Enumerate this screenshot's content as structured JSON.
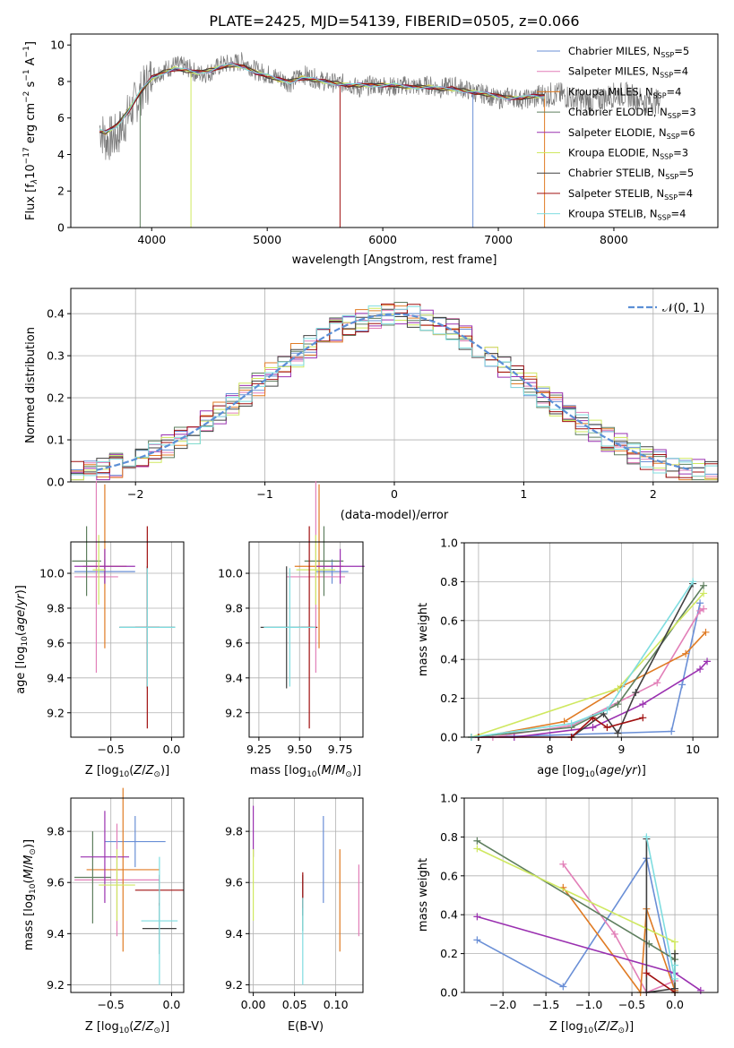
{
  "figure": {
    "title": "PLATE=2425, MJD=54139, FIBERID=0505, z=0.066"
  },
  "series": [
    {
      "name": "Chabrier MILES, N",
      "nssp": "=5",
      "color": "#6a8fd6"
    },
    {
      "name": "Salpeter MILES, N",
      "nssp": "=4",
      "color": "#e27fb8"
    },
    {
      "name": "Kroupa MILES, N",
      "nssp": "=4",
      "color": "#e07b24"
    },
    {
      "name": "Chabrier ELODIE, N",
      "nssp": "=3",
      "color": "#5f7f5f"
    },
    {
      "name": "Salpeter ELODIE, N",
      "nssp": "=6",
      "color": "#9a30b0"
    },
    {
      "name": "Kroupa ELODIE, N",
      "nssp": "=3",
      "color": "#cfe860"
    },
    {
      "name": "Chabrier STELIB, N",
      "nssp": "=5",
      "color": "#404040"
    },
    {
      "name": "Salpeter STELIB, N",
      "nssp": "=4",
      "color": "#a01010"
    },
    {
      "name": "Kroupa STELIB, N",
      "nssp": "=4",
      "color": "#7fdde0"
    }
  ],
  "legend_sub": "SSP",
  "chart_data": [
    {
      "id": "spectrum",
      "type": "line",
      "xlabel": "wavelength [Angstrom, rest frame]",
      "ylabel": "Flux [f",
      "xlim": [
        3300,
        8900
      ],
      "ylim": [
        0,
        10.6
      ],
      "xticks": [
        4000,
        5000,
        6000,
        7000,
        8000
      ],
      "yticks": [
        0,
        2,
        4,
        6,
        8,
        10
      ],
      "x": [
        3550,
        3600,
        3700,
        3800,
        3900,
        4000,
        4100,
        4200,
        4300,
        4400,
        4500,
        4600,
        4700,
        4800,
        4900,
        5000,
        5100,
        5200,
        5300,
        5400,
        5500,
        5600,
        5700,
        5800,
        5900,
        6000,
        6100,
        6200,
        6300,
        6400,
        6500,
        6600,
        6700,
        6800,
        6900,
        7000,
        7100,
        7200,
        7300,
        7400
      ],
      "data_flux": [
        5.5,
        4.8,
        5.0,
        6.2,
        7.3,
        8.3,
        8.6,
        8.9,
        8.8,
        8.4,
        8.5,
        8.9,
        9.0,
        9.1,
        8.6,
        8.4,
        8.2,
        7.9,
        8.4,
        8.2,
        8.0,
        7.9,
        7.9,
        7.6,
        7.8,
        7.8,
        7.7,
        7.8,
        7.7,
        7.8,
        7.6,
        7.8,
        7.6,
        7.4,
        7.3,
        7.0,
        7.2,
        7.0,
        7.1,
        7.3
      ],
      "model_flux": [
        5.3,
        5.2,
        5.6,
        6.4,
        7.4,
        8.2,
        8.5,
        8.7,
        8.6,
        8.5,
        8.6,
        8.8,
        8.9,
        8.8,
        8.5,
        8.3,
        8.1,
        8.0,
        8.2,
        8.1,
        8.0,
        7.9,
        7.8,
        7.8,
        7.8,
        7.8,
        7.8,
        7.7,
        7.7,
        7.7,
        7.6,
        7.6,
        7.5,
        7.4,
        7.3,
        7.2,
        7.1,
        7.1,
        7.2,
        7.2
      ]
    },
    {
      "id": "residuals",
      "type": "line",
      "xlabel": "(data-model)/error",
      "ylabel": "Normed distribution",
      "xlim": [
        -2.5,
        2.5
      ],
      "ylim": [
        0,
        0.46
      ],
      "xticks": [
        -2,
        -1,
        0,
        1,
        2
      ],
      "yticks": [
        0.0,
        0.1,
        0.2,
        0.3,
        0.4
      ],
      "legend": "𝒩(0, 1)"
    },
    {
      "id": "age_vs_Z",
      "type": "scatter",
      "xlabel": "Z [log",
      "ylabel": "age  [log",
      "xlim": [
        -0.83,
        0.1
      ],
      "ylim": [
        9.06,
        10.18
      ],
      "xticks": [
        -0.5,
        0.0
      ],
      "yticks": [
        9.2,
        9.4,
        9.6,
        9.8,
        10.0
      ],
      "points": [
        {
          "series": 0,
          "x": -0.55,
          "y": 10.01,
          "xerr": 0.25,
          "yerr": 0.07
        },
        {
          "series": 1,
          "x": -0.62,
          "y": 9.98,
          "xerr": 0.18,
          "yerr": 0.55
        },
        {
          "series": 2,
          "x": -0.55,
          "y": 10.04,
          "xerr": 0.18,
          "yerr": 0.47
        },
        {
          "series": 3,
          "x": -0.7,
          "y": 10.07,
          "xerr": 0.12,
          "yerr": 0.2
        },
        {
          "series": 4,
          "x": -0.55,
          "y": 10.04,
          "xerr": 0.25,
          "yerr": 0.1
        },
        {
          "series": 5,
          "x": -0.6,
          "y": 10.02,
          "xerr": 0.05,
          "yerr": 0.2
        },
        {
          "series": 6,
          "x": -0.2,
          "y": 9.69,
          "xerr": 0.23,
          "yerr": 0.35
        },
        {
          "series": 7,
          "x": -0.2,
          "y": 9.69,
          "xerr": 0.1,
          "yerr": 0.58
        },
        {
          "series": 8,
          "x": -0.2,
          "y": 9.69,
          "xerr": 0.23,
          "yerr": 0.34
        }
      ]
    },
    {
      "id": "age_vs_mass",
      "type": "scatter",
      "xlabel": "mass [log",
      "ylabel": "",
      "xlim": [
        9.19,
        9.89
      ],
      "ylim": [
        9.06,
        10.18
      ],
      "xticks": [
        9.25,
        9.5,
        9.75
      ],
      "yticks": [
        9.2,
        9.4,
        9.6,
        9.8,
        10.0
      ],
      "points": [
        {
          "series": 0,
          "x": 9.7,
          "y": 10.01,
          "xerr": 0.1,
          "yerr": 0.07
        },
        {
          "series": 1,
          "x": 9.6,
          "y": 9.98,
          "xerr": 0.18,
          "yerr": 0.55
        },
        {
          "series": 2,
          "x": 9.62,
          "y": 10.04,
          "xerr": 0.15,
          "yerr": 0.47
        },
        {
          "series": 3,
          "x": 9.65,
          "y": 10.07,
          "xerr": 0.12,
          "yerr": 0.2
        },
        {
          "series": 4,
          "x": 9.75,
          "y": 10.04,
          "xerr": 0.15,
          "yerr": 0.1
        },
        {
          "series": 5,
          "x": 9.6,
          "y": 10.02,
          "xerr": 0.12,
          "yerr": 0.2
        },
        {
          "series": 6,
          "x": 9.42,
          "y": 9.69,
          "xerr": 0.16,
          "yerr": 0.35
        },
        {
          "series": 7,
          "x": 9.56,
          "y": 9.69,
          "xerr": 0.05,
          "yerr": 0.58
        },
        {
          "series": 8,
          "x": 9.44,
          "y": 9.69,
          "xerr": 0.16,
          "yerr": 0.34
        }
      ]
    },
    {
      "id": "weight_vs_age",
      "type": "line",
      "xlabel": "age  [log",
      "ylabel": "mass weight",
      "xlim": [
        6.8,
        10.35
      ],
      "ylim": [
        0,
        1.0
      ],
      "xticks": [
        7,
        8,
        9,
        10
      ],
      "yticks": [
        0.0,
        0.2,
        0.4,
        0.6,
        0.8,
        1.0
      ],
      "lines": [
        {
          "series": 0,
          "x": [
            7.0,
            8.0,
            9.7,
            9.85,
            10.1
          ],
          "y": [
            0.0,
            0.01,
            0.03,
            0.27,
            0.69
          ]
        },
        {
          "series": 1,
          "x": [
            7.2,
            8.3,
            9.5,
            10.1,
            10.15
          ],
          "y": [
            0.0,
            0.06,
            0.28,
            0.65,
            0.66
          ]
        },
        {
          "series": 2,
          "x": [
            7.0,
            8.2,
            9.0,
            9.9,
            10.18
          ],
          "y": [
            0.0,
            0.08,
            0.26,
            0.43,
            0.54
          ]
        },
        {
          "series": 3,
          "x": [
            6.9,
            8.3,
            8.95,
            10.15
          ],
          "y": [
            0.0,
            0.05,
            0.17,
            0.78
          ]
        },
        {
          "series": 4,
          "x": [
            6.9,
            7.5,
            8.6,
            9.3,
            10.1,
            10.2
          ],
          "y": [
            0.0,
            0.0,
            0.05,
            0.17,
            0.35,
            0.39
          ]
        },
        {
          "series": 5,
          "x": [
            6.9,
            8.95,
            10.15
          ],
          "y": [
            0.0,
            0.25,
            0.74
          ]
        },
        {
          "series": 6,
          "x": [
            8.3,
            8.3,
            8.75,
            8.95,
            9.2,
            10.0
          ],
          "y": [
            0.0,
            0.0,
            0.12,
            0.02,
            0.23,
            0.79
          ]
        },
        {
          "series": 7,
          "x": [
            7.0,
            8.3,
            8.6,
            8.8,
            9.3
          ],
          "y": [
            0.0,
            0.0,
            0.1,
            0.05,
            0.1
          ]
        },
        {
          "series": 8,
          "x": [
            6.9,
            8.3,
            8.8,
            10.0
          ],
          "y": [
            0.0,
            0.07,
            0.14,
            0.8
          ]
        }
      ]
    },
    {
      "id": "mass_vs_Z",
      "type": "scatter",
      "xlabel": "Z [log",
      "ylabel": "mass [log",
      "xlim": [
        -0.83,
        0.1
      ],
      "ylim": [
        9.17,
        9.93
      ],
      "xticks": [
        -0.5,
        0.0
      ],
      "yticks": [
        9.2,
        9.4,
        9.6,
        9.8
      ],
      "points": [
        {
          "series": 0,
          "x": -0.3,
          "y": 9.76,
          "xerr": 0.25,
          "yerr": 0.1
        },
        {
          "series": 1,
          "x": -0.45,
          "y": 9.61,
          "xerr": 0.35,
          "yerr": 0.22
        },
        {
          "series": 2,
          "x": -0.4,
          "y": 9.65,
          "xerr": 0.3,
          "yerr": 0.32
        },
        {
          "series": 3,
          "x": -0.65,
          "y": 9.62,
          "xerr": 0.15,
          "yerr": 0.18
        },
        {
          "series": 4,
          "x": -0.55,
          "y": 9.7,
          "xerr": 0.2,
          "yerr": 0.18
        },
        {
          "series": 5,
          "x": -0.45,
          "y": 9.59,
          "xerr": 0.15,
          "yerr": 0.14
        },
        {
          "series": 6,
          "x": -0.1,
          "y": 9.42,
          "xerr": 0.14,
          "yerr": 0.1
        },
        {
          "series": 7,
          "x": -0.1,
          "y": 9.57,
          "xerr": 0.2,
          "yerr": 0.06
        },
        {
          "series": 8,
          "x": -0.1,
          "y": 9.45,
          "xerr": 0.15,
          "yerr": 0.25
        }
      ]
    },
    {
      "id": "mass_vs_EBV",
      "type": "scatter",
      "xlabel": "E(B-V)",
      "ylabel": "",
      "xlim": [
        -0.005,
        0.133
      ],
      "ylim": [
        9.17,
        9.93
      ],
      "xticks": [
        0.0,
        0.05,
        0.1
      ],
      "yticks": [
        9.2,
        9.4,
        9.6,
        9.8
      ],
      "points": [
        {
          "series": 0,
          "x": 0.085,
          "y": 9.69,
          "yerr": 0.17
        },
        {
          "series": 1,
          "x": 0.128,
          "y": 9.53,
          "yerr": 0.14
        },
        {
          "series": 2,
          "x": 0.105,
          "y": 9.53,
          "yerr": 0.2
        },
        {
          "series": 3,
          "x": 0.06,
          "y": 9.47,
          "yerr": 0.06
        },
        {
          "series": 4,
          "x": 0.0,
          "y": 9.8,
          "yerr": 0.1
        },
        {
          "series": 5,
          "x": 0.0,
          "y": 9.59,
          "yerr": 0.14
        },
        {
          "series": 6,
          "x": 0.06,
          "y": 9.55,
          "yerr": 0.08
        },
        {
          "series": 7,
          "x": 0.06,
          "y": 9.57,
          "yerr": 0.07
        },
        {
          "series": 8,
          "x": 0.06,
          "y": 9.37,
          "yerr": 0.17
        }
      ]
    },
    {
      "id": "weight_vs_Z",
      "type": "line",
      "xlabel": "Z [log",
      "ylabel": "mass weight",
      "xlim": [
        -2.45,
        0.5
      ],
      "ylim": [
        0,
        1.0
      ],
      "xticks": [
        -2.0,
        -1.5,
        -1.0,
        -0.5,
        0.0
      ],
      "yticks": [
        0.0,
        0.2,
        0.4,
        0.6,
        0.8,
        1.0
      ],
      "lines": [
        {
          "series": 0,
          "x": [
            -2.3,
            -1.3,
            -0.33,
            0.0,
            0.0
          ],
          "y": [
            0.27,
            0.03,
            0.69,
            0.0,
            0.01
          ]
        },
        {
          "series": 1,
          "x": [
            -1.3,
            -0.7,
            -0.33,
            0.0
          ],
          "y": [
            0.66,
            0.3,
            0.0,
            0.06
          ]
        },
        {
          "series": 2,
          "x": [
            -1.3,
            -0.4,
            -0.33,
            0.0
          ],
          "y": [
            0.54,
            0.0,
            0.43,
            0.01
          ]
        },
        {
          "series": 3,
          "x": [
            -2.3,
            -0.3,
            0.0
          ],
          "y": [
            0.78,
            0.25,
            0.17
          ]
        },
        {
          "series": 4,
          "x": [
            -2.3,
            0.0,
            0.3
          ],
          "y": [
            0.39,
            0.1,
            0.01
          ]
        },
        {
          "series": 5,
          "x": [
            -2.3,
            0.0,
            0.0
          ],
          "y": [
            0.74,
            0.26,
            0.0
          ]
        },
        {
          "series": 6,
          "x": [
            -0.33,
            -0.33,
            0.0,
            0.0
          ],
          "y": [
            0.79,
            0.0,
            0.02,
            0.2
          ]
        },
        {
          "series": 7,
          "x": [
            -0.33,
            0.0
          ],
          "y": [
            0.1,
            0.0
          ]
        },
        {
          "series": 8,
          "x": [
            -0.33,
            0.0,
            0.0
          ],
          "y": [
            0.8,
            0.07,
            0.14
          ]
        }
      ]
    }
  ]
}
